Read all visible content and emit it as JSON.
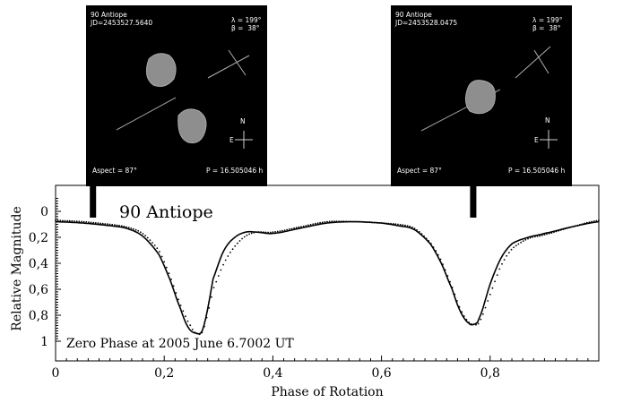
{
  "panels": [
    {
      "name_line": "90 Antiope",
      "jd_line": "JD=2453527.5640",
      "lambda_line": "λ = 199°",
      "beta_line": "β =  38°",
      "aspect_line": "Aspect = 87°",
      "period_line": "P = 16.505046 h",
      "north_label": "N",
      "east_label": "E"
    },
    {
      "name_line": "90 Antiope",
      "jd_line": "JD=2453528.0475",
      "lambda_line": "λ = 199°",
      "beta_line": "β =  38°",
      "aspect_line": "Aspect = 87°",
      "period_line": "P = 16.505046 h",
      "north_label": "N",
      "east_label": "E"
    }
  ],
  "chart_data": {
    "type": "line",
    "title": "90 Antiope",
    "annotation": "Zero Phase at 2005 June 6.7002 UT",
    "xlabel": "Phase of Rotation",
    "ylabel": "Relative Magnitude",
    "xlim": [
      0,
      1
    ],
    "ylim": [
      0,
      1.13
    ],
    "y_inverted": true,
    "x_ticks": [
      "0",
      "0,2",
      "0,4",
      "0,6",
      "0,8"
    ],
    "x_tick_values": [
      0,
      0.2,
      0.4,
      0.6,
      0.8
    ],
    "y_ticks": [
      "0",
      "0,2",
      "0,4",
      "0,6",
      "0,8",
      "1"
    ],
    "y_tick_values": [
      0,
      0.2,
      0.4,
      0.6,
      0.8,
      1.0
    ],
    "markers": [
      0.068,
      0.768
    ],
    "series": [
      {
        "kind": "model",
        "x": [
          0,
          0.05,
          0.1,
          0.13,
          0.16,
          0.19,
          0.21,
          0.23,
          0.245,
          0.26,
          0.27,
          0.28,
          0.29,
          0.31,
          0.33,
          0.35,
          0.37,
          0.4,
          0.45,
          0.5,
          0.55,
          0.6,
          0.63,
          0.66,
          0.69,
          0.71,
          0.73,
          0.745,
          0.76,
          0.77,
          0.78,
          0.8,
          0.82,
          0.84,
          0.87,
          0.9,
          0.95,
          1.0
        ],
        "y": [
          0.08,
          0.09,
          0.11,
          0.13,
          0.19,
          0.33,
          0.52,
          0.75,
          0.9,
          0.94,
          0.92,
          0.75,
          0.52,
          0.3,
          0.2,
          0.16,
          0.16,
          0.17,
          0.13,
          0.09,
          0.08,
          0.09,
          0.11,
          0.14,
          0.25,
          0.4,
          0.6,
          0.77,
          0.86,
          0.87,
          0.82,
          0.56,
          0.36,
          0.25,
          0.2,
          0.17,
          0.12,
          0.08
        ]
      },
      {
        "kind": "observed",
        "x": [
          0,
          0.05,
          0.1,
          0.13,
          0.16,
          0.19,
          0.21,
          0.23,
          0.25,
          0.26,
          0.27,
          0.28,
          0.29,
          0.31,
          0.33,
          0.35,
          0.37,
          0.4,
          0.45,
          0.5,
          0.55,
          0.6,
          0.63,
          0.66,
          0.69,
          0.71,
          0.73,
          0.745,
          0.76,
          0.77,
          0.78,
          0.8,
          0.82,
          0.84,
          0.87,
          0.9,
          0.95,
          1.0
        ],
        "y": [
          0.07,
          0.08,
          0.1,
          0.12,
          0.17,
          0.3,
          0.49,
          0.72,
          0.89,
          0.94,
          0.93,
          0.79,
          0.6,
          0.4,
          0.27,
          0.19,
          0.16,
          0.16,
          0.12,
          0.08,
          0.08,
          0.09,
          0.1,
          0.13,
          0.24,
          0.38,
          0.58,
          0.75,
          0.85,
          0.87,
          0.85,
          0.64,
          0.42,
          0.29,
          0.21,
          0.18,
          0.12,
          0.07
        ]
      }
    ],
    "grid": false,
    "legend": "none"
  }
}
